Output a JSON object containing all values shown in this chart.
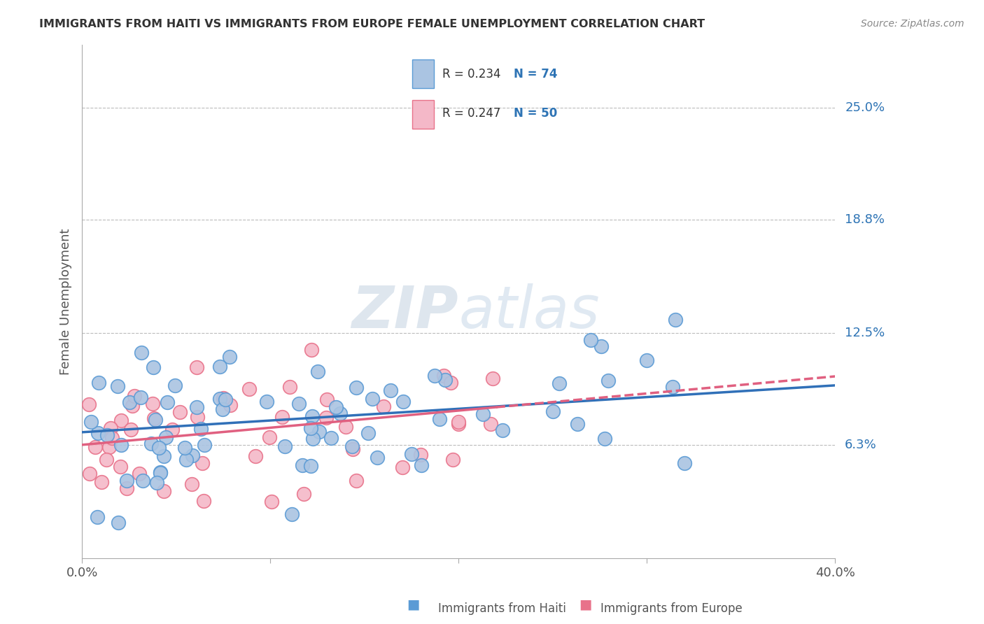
{
  "title": "IMMIGRANTS FROM HAITI VS IMMIGRANTS FROM EUROPE FEMALE UNEMPLOYMENT CORRELATION CHART",
  "source": "Source: ZipAtlas.com",
  "ylabel": "Female Unemployment",
  "ytick_labels": [
    "25.0%",
    "18.8%",
    "12.5%",
    "6.3%"
  ],
  "ytick_values": [
    0.25,
    0.188,
    0.125,
    0.063
  ],
  "xlim": [
    0.0,
    0.4
  ],
  "ylim": [
    0.0,
    0.285
  ],
  "haiti_color": "#aac4e2",
  "haiti_edge_color": "#5b9bd5",
  "europe_color": "#f4b8c8",
  "europe_edge_color": "#e8728a",
  "haiti_R": 0.234,
  "haiti_N": 74,
  "europe_R": 0.247,
  "europe_N": 50,
  "legend_text_color": "#2e74b5",
  "legend_R_color": "#333333",
  "background_color": "#ffffff",
  "grid_color": "#bbbbbb",
  "title_color": "#333333",
  "right_label_color": "#2e74b5",
  "watermark_color": "#d0dce8",
  "haiti_trend_intercept": 0.07,
  "haiti_trend_slope": 0.065,
  "europe_trend_intercept": 0.063,
  "europe_trend_slope": 0.095,
  "haiti_trend_color": "#3070b8",
  "europe_trend_color": "#e06080"
}
